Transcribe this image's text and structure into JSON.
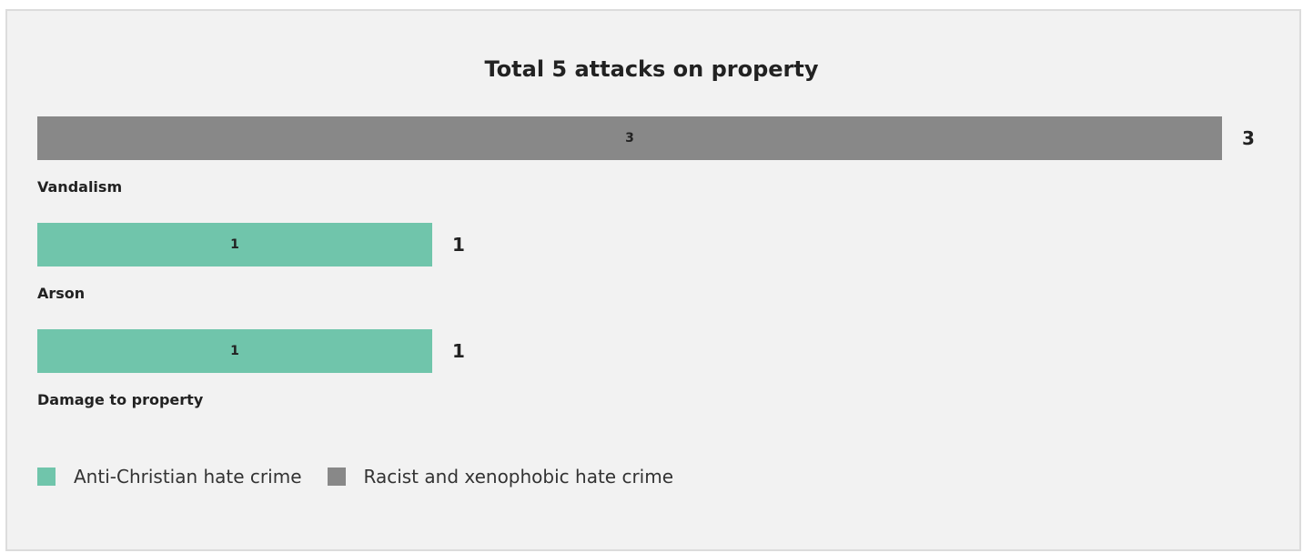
{
  "chart_data": {
    "type": "bar",
    "orientation": "horizontal",
    "title": "Total 5 attacks on property",
    "xlabel": "",
    "ylabel": "",
    "xlim": [
      0,
      3
    ],
    "grid": false,
    "legend_position": "bottom-left",
    "categories": [
      {
        "name": "Vandalism",
        "series": "Racist and xenophobic hate crime",
        "value": 3,
        "value_label": "3",
        "total_label": "3"
      },
      {
        "name": "Arson",
        "series": "Anti-Christian hate crime",
        "value": 1,
        "value_label": "1",
        "total_label": "1"
      },
      {
        "name": "Damage to property",
        "series": "Anti-Christian hate crime",
        "value": 1,
        "value_label": "1",
        "total_label": "1"
      }
    ],
    "series": [
      {
        "name": "Anti-Christian hate crime",
        "color": "#70c5ab"
      },
      {
        "name": "Racist and xenophobic hate crime",
        "color": "#888888"
      }
    ]
  }
}
